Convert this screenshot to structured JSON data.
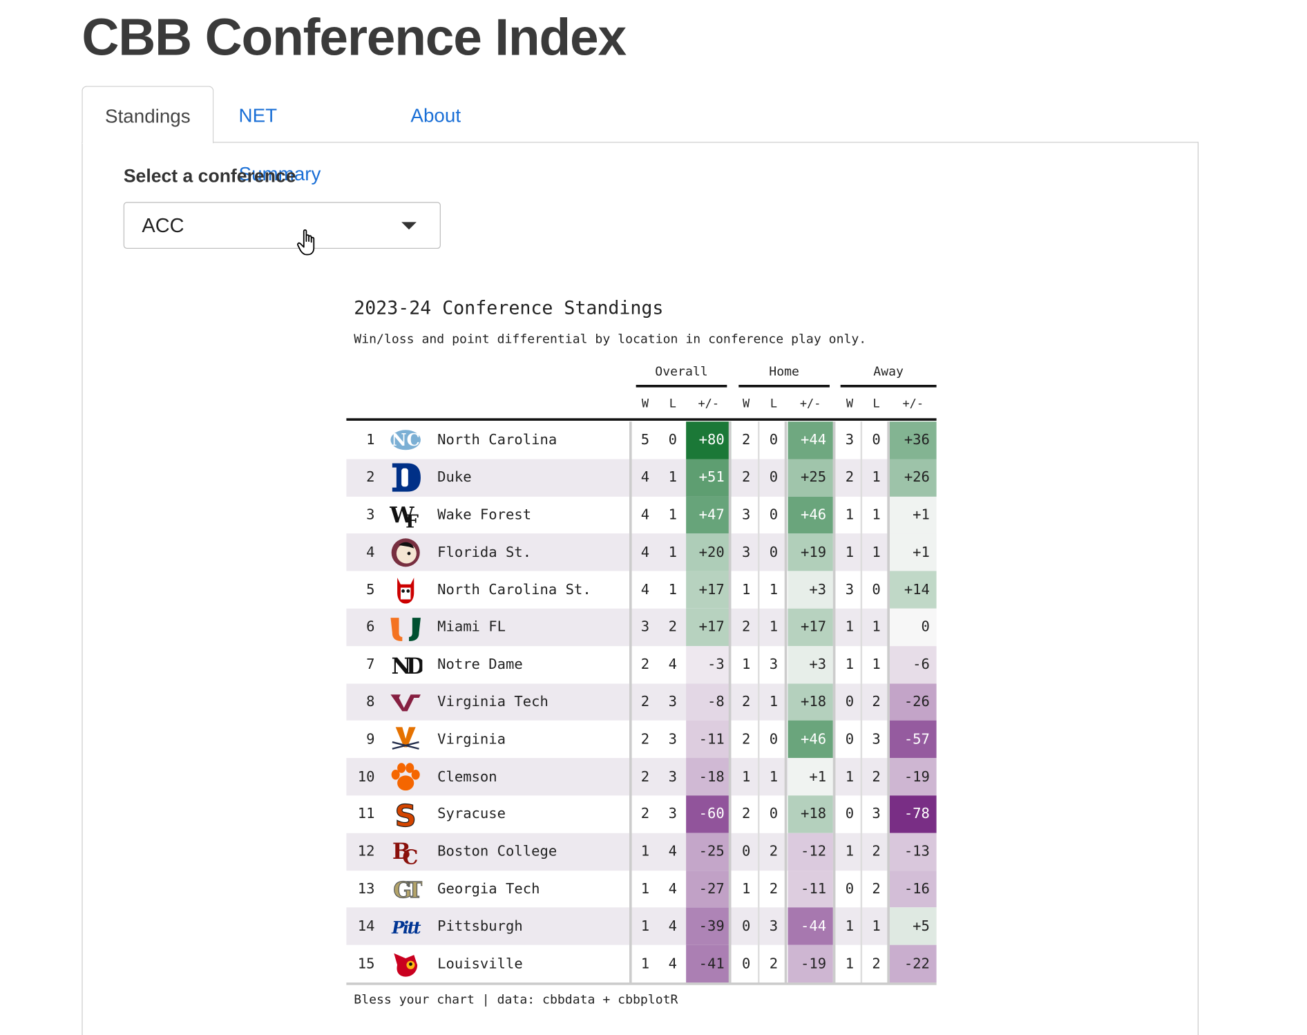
{
  "app": {
    "title": "CBB Conference Index"
  },
  "tabs": [
    {
      "label": "Standings",
      "active": true
    },
    {
      "label": "NET Summary",
      "active": false
    },
    {
      "label": "About",
      "active": false
    }
  ],
  "filter": {
    "label": "Select a conference",
    "selected": "ACC"
  },
  "chart_data": {
    "type": "table",
    "title": "2023-24 Conference Standings",
    "subtitle": "Win/loss and point differential by location in conference play only.",
    "caption": "Bless your chart | data: cbbdata + cbbplotR",
    "groups": [
      "Overall",
      "Home",
      "Away"
    ],
    "columns": [
      "W",
      "L",
      "+/-"
    ],
    "colors": {
      "positive": "#1b7837",
      "negative": "#762a83",
      "neutral": "#f7f7f7"
    },
    "rows": [
      {
        "rank": "1",
        "team": "North Carolina",
        "logo": "unc",
        "overall": [
          "5",
          "0",
          "+80"
        ],
        "home": [
          "2",
          "0",
          "+44"
        ],
        "away": [
          "3",
          "0",
          "+36"
        ]
      },
      {
        "rank": "2",
        "team": "Duke",
        "logo": "duke",
        "overall": [
          "4",
          "1",
          "+51"
        ],
        "home": [
          "2",
          "0",
          "+25"
        ],
        "away": [
          "2",
          "1",
          "+26"
        ]
      },
      {
        "rank": "3",
        "team": "Wake Forest",
        "logo": "wake",
        "overall": [
          "4",
          "1",
          "+47"
        ],
        "home": [
          "3",
          "0",
          "+46"
        ],
        "away": [
          "1",
          "1",
          "+1"
        ]
      },
      {
        "rank": "4",
        "team": "Florida St.",
        "logo": "fsu",
        "overall": [
          "4",
          "1",
          "+20"
        ],
        "home": [
          "3",
          "0",
          "+19"
        ],
        "away": [
          "1",
          "1",
          "+1"
        ]
      },
      {
        "rank": "5",
        "team": "North Carolina St.",
        "logo": "ncst",
        "overall": [
          "4",
          "1",
          "+17"
        ],
        "home": [
          "1",
          "1",
          "+3"
        ],
        "away": [
          "3",
          "0",
          "+14"
        ]
      },
      {
        "rank": "6",
        "team": "Miami FL",
        "logo": "miami",
        "overall": [
          "3",
          "2",
          "+17"
        ],
        "home": [
          "2",
          "1",
          "+17"
        ],
        "away": [
          "1",
          "1",
          "0"
        ]
      },
      {
        "rank": "7",
        "team": "Notre Dame",
        "logo": "nd",
        "overall": [
          "2",
          "4",
          "-3"
        ],
        "home": [
          "1",
          "3",
          "+3"
        ],
        "away": [
          "1",
          "1",
          "-6"
        ]
      },
      {
        "rank": "8",
        "team": "Virginia Tech",
        "logo": "vt",
        "overall": [
          "2",
          "3",
          "-8"
        ],
        "home": [
          "2",
          "1",
          "+18"
        ],
        "away": [
          "0",
          "2",
          "-26"
        ]
      },
      {
        "rank": "9",
        "team": "Virginia",
        "logo": "uva",
        "overall": [
          "2",
          "3",
          "-11"
        ],
        "home": [
          "2",
          "0",
          "+46"
        ],
        "away": [
          "0",
          "3",
          "-57"
        ]
      },
      {
        "rank": "10",
        "team": "Clemson",
        "logo": "clemson",
        "overall": [
          "2",
          "3",
          "-18"
        ],
        "home": [
          "1",
          "1",
          "+1"
        ],
        "away": [
          "1",
          "2",
          "-19"
        ]
      },
      {
        "rank": "11",
        "team": "Syracuse",
        "logo": "cuse",
        "overall": [
          "2",
          "3",
          "-60"
        ],
        "home": [
          "2",
          "0",
          "+18"
        ],
        "away": [
          "0",
          "3",
          "-78"
        ]
      },
      {
        "rank": "12",
        "team": "Boston College",
        "logo": "bc",
        "overall": [
          "1",
          "4",
          "-25"
        ],
        "home": [
          "0",
          "2",
          "-12"
        ],
        "away": [
          "1",
          "2",
          "-13"
        ]
      },
      {
        "rank": "13",
        "team": "Georgia Tech",
        "logo": "gt",
        "overall": [
          "1",
          "4",
          "-27"
        ],
        "home": [
          "1",
          "2",
          "-11"
        ],
        "away": [
          "0",
          "2",
          "-16"
        ]
      },
      {
        "rank": "14",
        "team": "Pittsburgh",
        "logo": "pitt",
        "overall": [
          "1",
          "4",
          "-39"
        ],
        "home": [
          "0",
          "3",
          "-44"
        ],
        "away": [
          "1",
          "1",
          "+5"
        ]
      },
      {
        "rank": "15",
        "team": "Louisville",
        "logo": "lou",
        "overall": [
          "1",
          "4",
          "-41"
        ],
        "home": [
          "0",
          "2",
          "-19"
        ],
        "away": [
          "1",
          "2",
          "-22"
        ]
      }
    ]
  }
}
